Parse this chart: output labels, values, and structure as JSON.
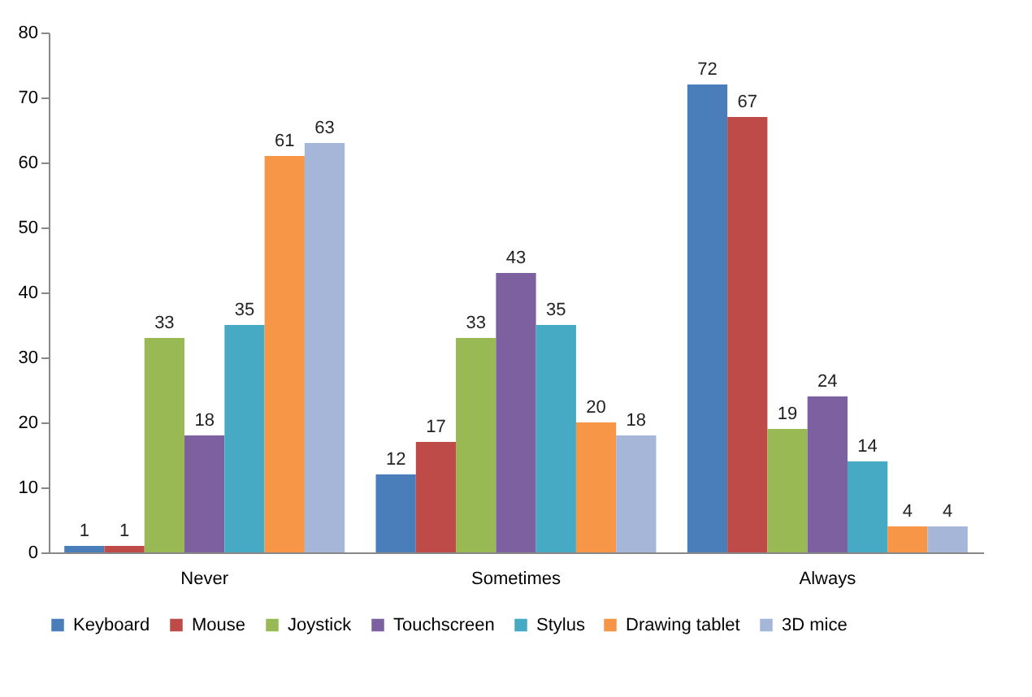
{
  "chart_data": {
    "type": "bar",
    "categories": [
      "Never",
      "Sometimes",
      "Always"
    ],
    "series": [
      {
        "name": "Keyboard",
        "color": "#4a7ebb",
        "values": [
          1,
          12,
          72
        ]
      },
      {
        "name": "Mouse",
        "color": "#be4b48",
        "values": [
          1,
          17,
          67
        ]
      },
      {
        "name": "Joystick",
        "color": "#98b954",
        "values": [
          33,
          33,
          19
        ]
      },
      {
        "name": "Touchscreen",
        "color": "#7d60a0",
        "values": [
          18,
          43,
          24
        ]
      },
      {
        "name": "Stylus",
        "color": "#46aac5",
        "values": [
          35,
          35,
          14
        ]
      },
      {
        "name": "Drawing tablet",
        "color": "#f79646",
        "values": [
          61,
          20,
          4
        ]
      },
      {
        "name": "3D mice",
        "color": "#a5b6d9",
        "values": [
          63,
          18,
          4
        ]
      }
    ],
    "ylim": [
      0,
      80
    ],
    "yticks": [
      0,
      10,
      20,
      30,
      40,
      50,
      60,
      70,
      80
    ],
    "grid": false,
    "legend": "bottom",
    "data_labels": true
  }
}
